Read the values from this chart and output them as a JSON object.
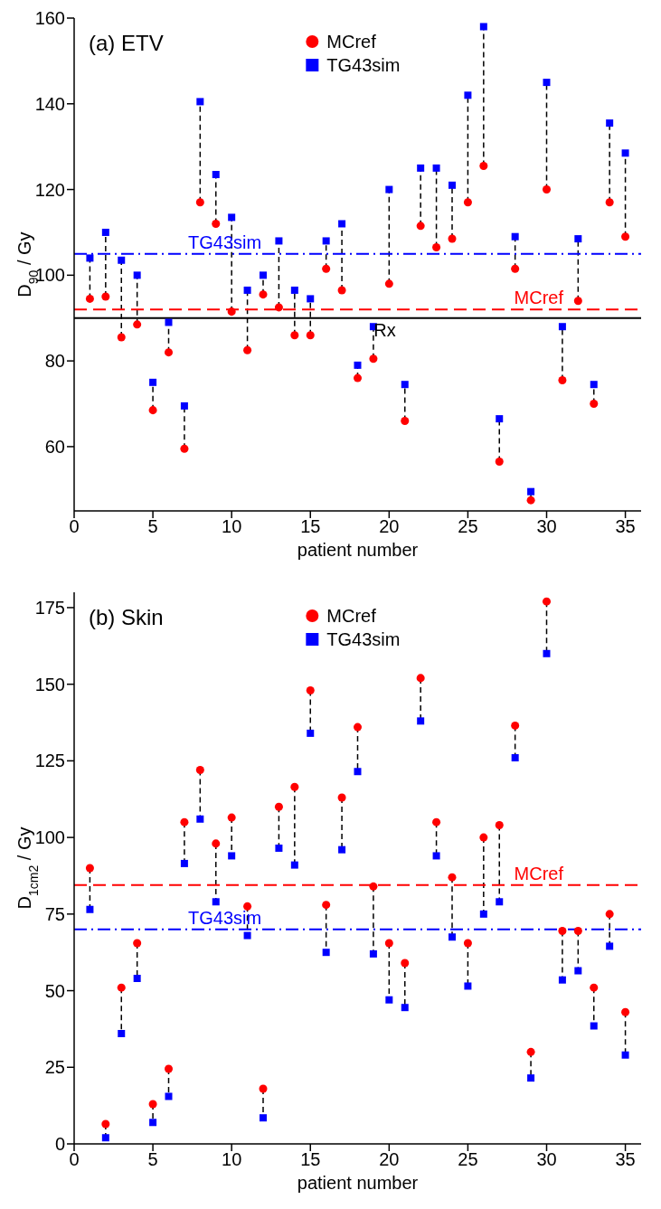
{
  "chart_data": [
    {
      "type": "scatter",
      "title": "(a) ETV",
      "xlabel": "patient number",
      "ylabel": "D$_{90}$ / Gy",
      "x": [
        1,
        2,
        3,
        4,
        5,
        6,
        7,
        8,
        9,
        10,
        11,
        12,
        13,
        14,
        15,
        16,
        17,
        18,
        19,
        20,
        21,
        22,
        23,
        24,
        25,
        26,
        27,
        28,
        29,
        30,
        31,
        32,
        33,
        34,
        35
      ],
      "series": [
        {
          "name": "MCref",
          "color": "#ff0000",
          "marker": "circle",
          "values": [
            94.5,
            95,
            85.5,
            88.5,
            68.5,
            82,
            59.5,
            117,
            112,
            91.5,
            82.5,
            95.5,
            92.5,
            86,
            86,
            101.5,
            96.5,
            76,
            80.5,
            98,
            66,
            111.5,
            106.5,
            108.5,
            117,
            125.5,
            56.5,
            101.5,
            47.5,
            120,
            75.5,
            94,
            70,
            117,
            109
          ]
        },
        {
          "name": "TG43sim",
          "color": "#0000ff",
          "marker": "square",
          "values": [
            104,
            110,
            103.5,
            100,
            75,
            89,
            69.5,
            140.5,
            123.5,
            113.5,
            96.5,
            100,
            108,
            96.5,
            94.5,
            108,
            112,
            79,
            88,
            120,
            74.5,
            125,
            125,
            121,
            142,
            158,
            66.5,
            109,
            49.5,
            145,
            88,
            108.5,
            74.5,
            135.5,
            128.5
          ]
        }
      ],
      "xlim": [
        0,
        36
      ],
      "xticks": [
        0,
        5,
        10,
        15,
        20,
        25,
        30,
        35
      ],
      "ylim": [
        45,
        160
      ],
      "yticks": [
        60,
        80,
        100,
        120,
        140,
        160
      ],
      "ref_lines": [
        {
          "axis": "y",
          "value": 105,
          "label": "TG43sim",
          "color": "#0000ff",
          "line_style": "dashdot"
        },
        {
          "axis": "y",
          "value": 92,
          "label": "MCref",
          "color": "#ff0000",
          "line_style": "dashed"
        },
        {
          "axis": "y",
          "value": 90,
          "label": "Rx",
          "color": "#000000",
          "line_style": "solid"
        }
      ],
      "legend": "top",
      "grid": false
    },
    {
      "type": "scatter",
      "title": "(b) Skin",
      "xlabel": "patient number",
      "ylabel": "D$_{1cm2}$ / Gy",
      "x": [
        1,
        2,
        3,
        4,
        5,
        6,
        7,
        8,
        9,
        10,
        11,
        12,
        13,
        14,
        15,
        16,
        17,
        18,
        19,
        20,
        21,
        22,
        23,
        24,
        25,
        26,
        27,
        28,
        29,
        30,
        31,
        32,
        33,
        34,
        35
      ],
      "series": [
        {
          "name": "MCref",
          "color": "#ff0000",
          "marker": "circle",
          "values": [
            90,
            6.5,
            51,
            65.5,
            13,
            24.5,
            105,
            122,
            98,
            106.5,
            77.5,
            18,
            110,
            116.5,
            148,
            78,
            113,
            136,
            84,
            65.5,
            59,
            152,
            105,
            87,
            65.5,
            100,
            104,
            136.5,
            30,
            177,
            69.5,
            69.5,
            51,
            75,
            43
          ]
        },
        {
          "name": "TG43sim",
          "color": "#0000ff",
          "marker": "square",
          "values": [
            76.5,
            2,
            36,
            54,
            7,
            15.5,
            91.5,
            106,
            79,
            94,
            68,
            8.5,
            96.5,
            91,
            134,
            62.5,
            96,
            121.5,
            62,
            47,
            44.5,
            138,
            94,
            67.5,
            51.5,
            75,
            79,
            126,
            21.5,
            160,
            53.5,
            56.5,
            38.5,
            64.5,
            29
          ]
        }
      ],
      "xlim": [
        0,
        36
      ],
      "xticks": [
        0,
        5,
        10,
        15,
        20,
        25,
        30,
        35
      ],
      "ylim": [
        0,
        180
      ],
      "yticks": [
        0,
        25,
        50,
        75,
        100,
        125,
        150,
        175
      ],
      "ref_lines": [
        {
          "axis": "y",
          "value": 84.5,
          "label": "MCref",
          "color": "#ff0000",
          "line_style": "dashed"
        },
        {
          "axis": "y",
          "value": 70,
          "label": "TG43sim",
          "color": "#0000ff",
          "line_style": "dashdot"
        }
      ],
      "legend": "top",
      "grid": false
    }
  ]
}
